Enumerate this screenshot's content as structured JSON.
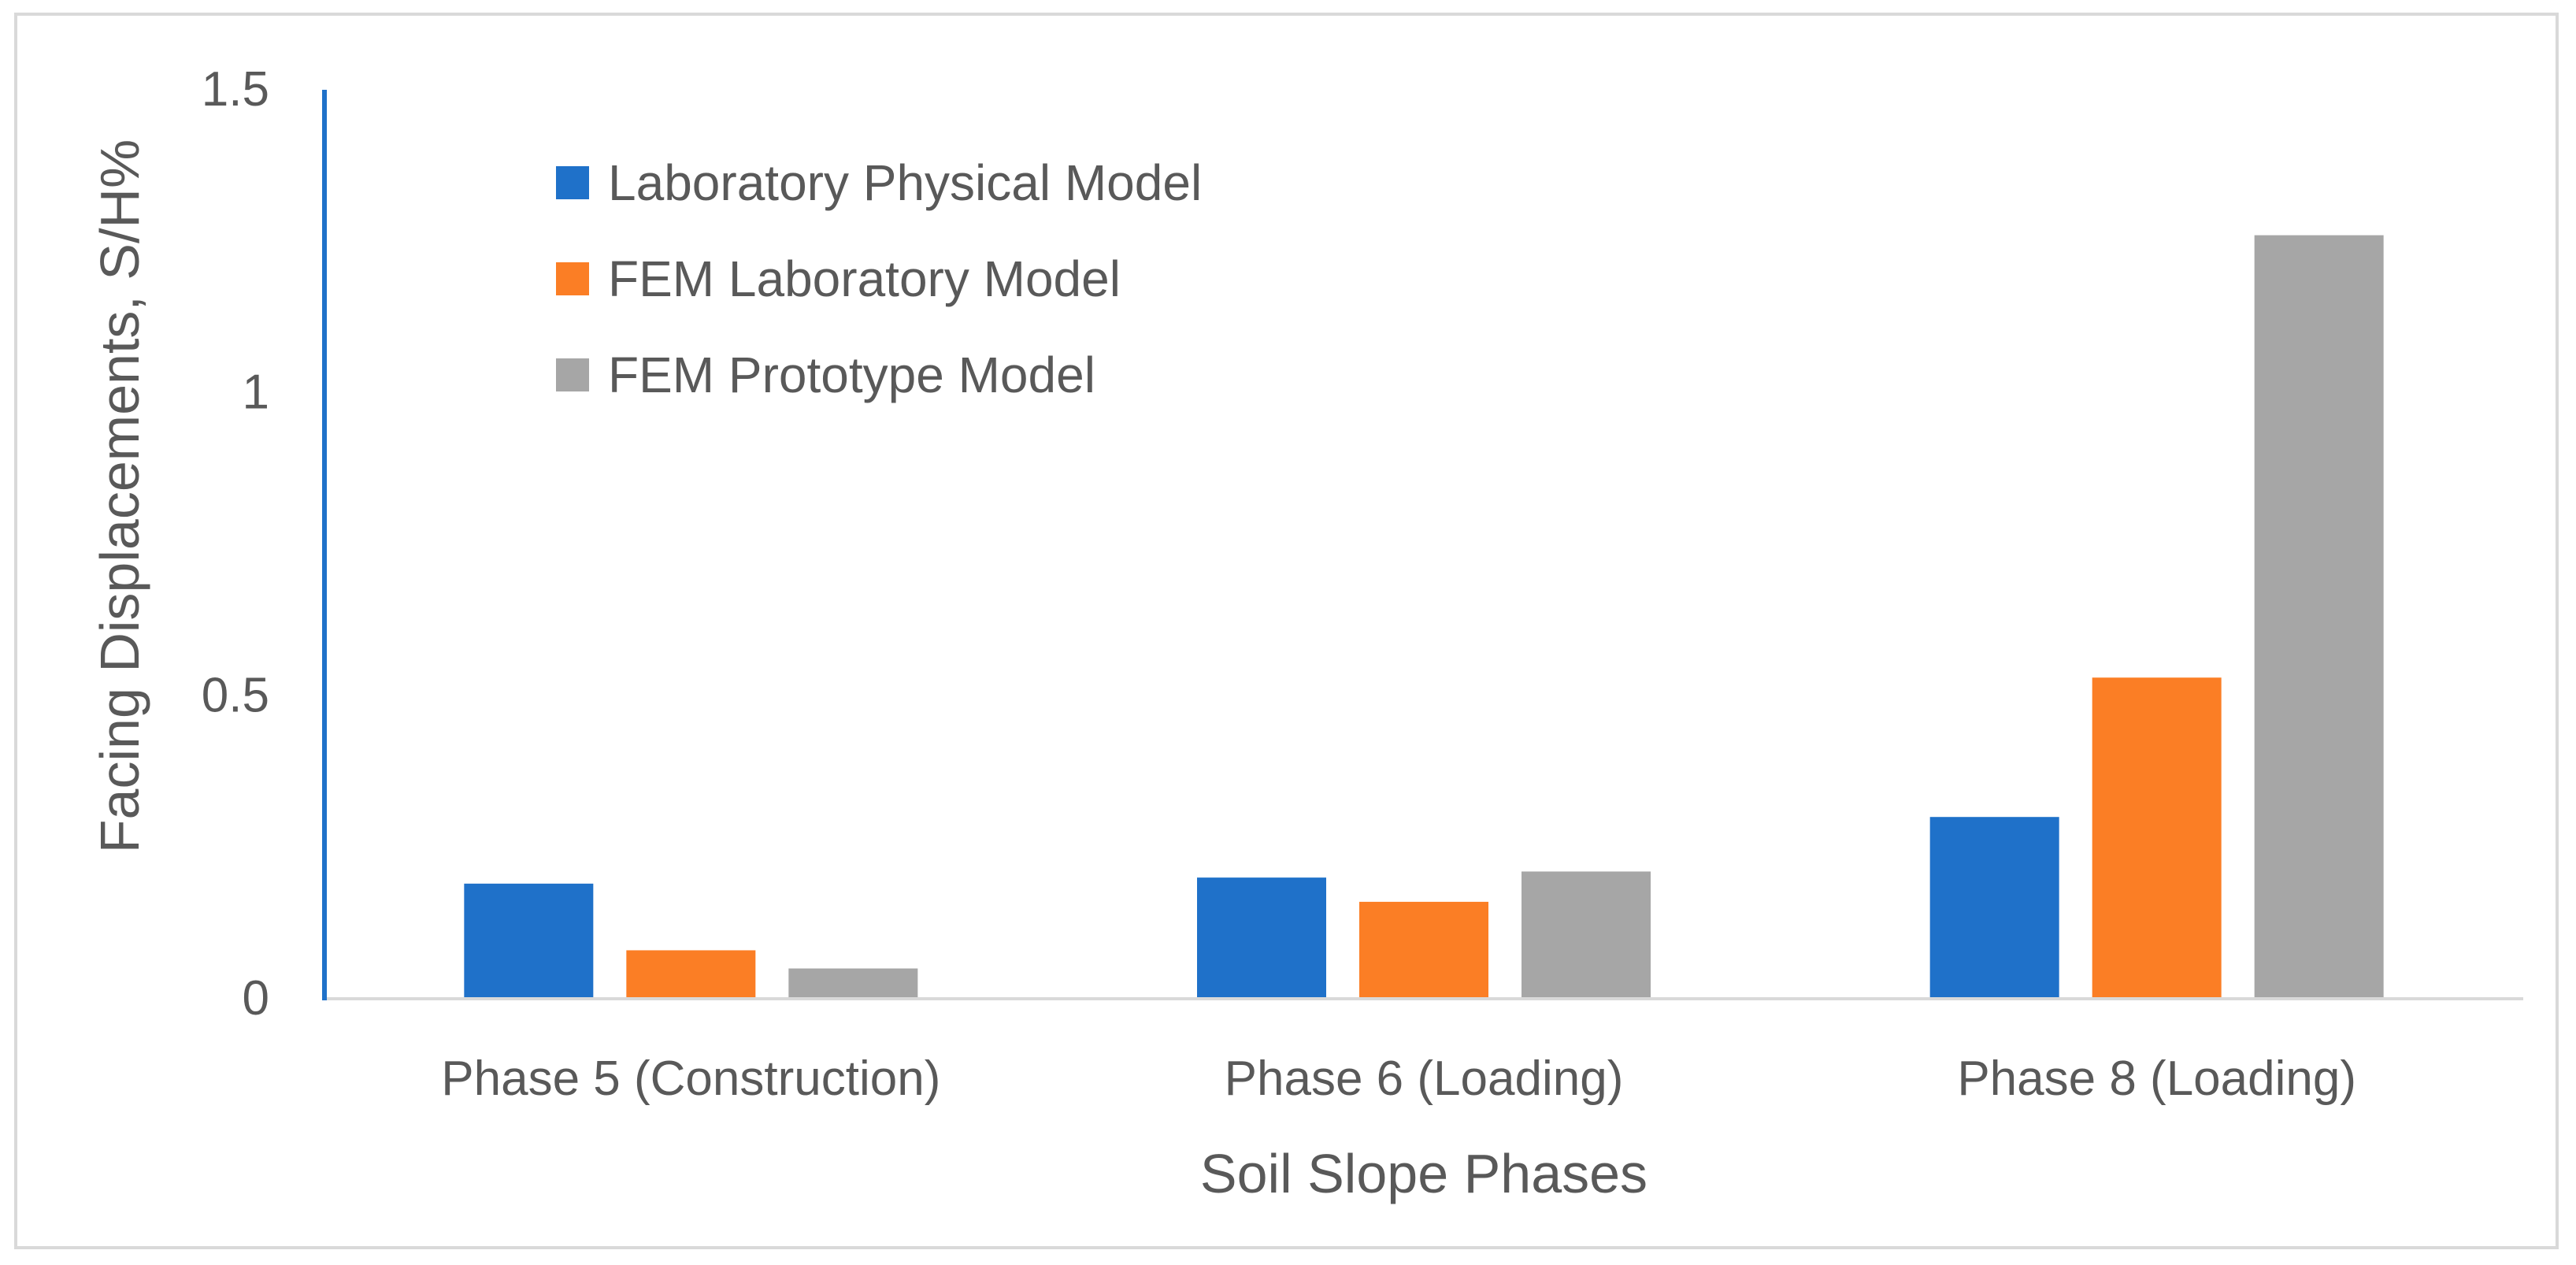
{
  "chart_data": {
    "type": "bar",
    "title": "",
    "xlabel": "Soil Slope Phases",
    "ylabel": "Facing Displacements, S/H%",
    "categories": [
      "Phase 5 (Construction)",
      "Phase 6 (Loading)",
      "Phase 8 (Loading)"
    ],
    "series": [
      {
        "name": "Laboratory Physical Model",
        "color": "#1f71c9",
        "values": [
          0.19,
          0.2,
          0.3
        ]
      },
      {
        "name": "FEM Laboratory Model",
        "color": "#fb7e25",
        "values": [
          0.08,
          0.16,
          0.53
        ]
      },
      {
        "name": "FEM Prototype Model",
        "color": "#a6a6a6",
        "values": [
          0.05,
          0.21,
          1.26
        ]
      }
    ],
    "ylim": [
      0,
      1.5
    ],
    "yticks": [
      {
        "value": 0,
        "label": "0"
      },
      {
        "value": 0.5,
        "label": "0.5"
      },
      {
        "value": 1,
        "label": "1"
      },
      {
        "value": 1.5,
        "label": "1.5"
      }
    ],
    "grid": false,
    "legend_position": "top-left",
    "axis_colors": {
      "y_axis": "#1f71c9",
      "x_axis": "#d9d9d9"
    }
  }
}
